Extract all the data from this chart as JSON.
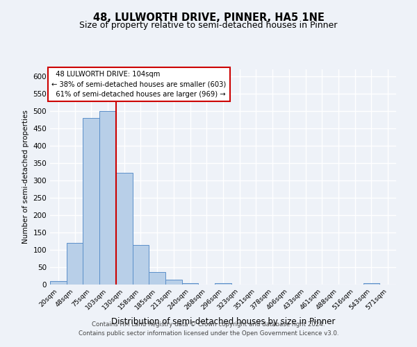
{
  "title": "48, LULWORTH DRIVE, PINNER, HA5 1NE",
  "subtitle": "Size of property relative to semi-detached houses in Pinner",
  "xlabel": "Distribution of semi-detached houses by size in Pinner",
  "ylabel": "Number of semi-detached properties",
  "footnote1": "Contains HM Land Registry data © Crown copyright and database right 2024.",
  "footnote2": "Contains public sector information licensed under the Open Government Licence v3.0.",
  "bar_labels": [
    "20sqm",
    "48sqm",
    "75sqm",
    "103sqm",
    "130sqm",
    "158sqm",
    "185sqm",
    "213sqm",
    "240sqm",
    "268sqm",
    "296sqm",
    "323sqm",
    "351sqm",
    "378sqm",
    "406sqm",
    "433sqm",
    "461sqm",
    "488sqm",
    "516sqm",
    "543sqm",
    "571sqm"
  ],
  "bar_values": [
    10,
    120,
    480,
    500,
    322,
    115,
    37,
    15,
    5,
    0,
    5,
    0,
    0,
    0,
    0,
    0,
    0,
    0,
    0,
    5,
    0
  ],
  "bar_color": "#b8cfe8",
  "bar_edge_color": "#5b8fc9",
  "red_line_index": 3,
  "property_size": "104sqm",
  "property_name": "48 LULWORTH DRIVE",
  "pct_smaller": 38,
  "count_smaller": 603,
  "pct_larger": 61,
  "count_larger": 969,
  "annotation_box_color": "#ffffff",
  "annotation_box_edge": "#cc0000",
  "red_line_color": "#cc0000",
  "ylim": [
    0,
    620
  ],
  "yticks": [
    0,
    50,
    100,
    150,
    200,
    250,
    300,
    350,
    400,
    450,
    500,
    550,
    600
  ],
  "bg_color": "#eef2f8",
  "grid_color": "#ffffff",
  "title_fontsize": 10.5,
  "subtitle_fontsize": 9
}
